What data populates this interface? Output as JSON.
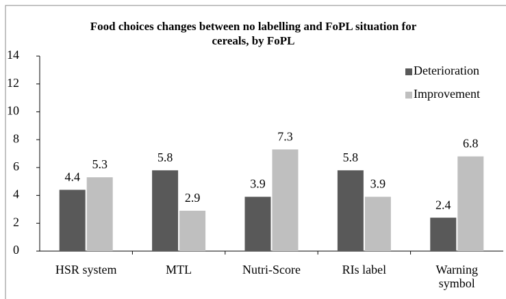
{
  "chart_data": {
    "type": "bar",
    "title": "Food choices changes between no labelling and FoPL situation for cereals, by FoPL",
    "categories": [
      "HSR system",
      "MTL",
      "Nutri-Score",
      "RIs label",
      "Warning symbol"
    ],
    "series": [
      {
        "name": "Deterioration",
        "color": "#595959",
        "values": [
          4.4,
          5.8,
          3.9,
          5.8,
          2.4
        ]
      },
      {
        "name": "Improvement",
        "color": "#bfbfbf",
        "values": [
          5.3,
          2.9,
          7.3,
          3.9,
          6.8
        ]
      }
    ],
    "ylim": [
      0,
      14
    ],
    "yticks": [
      0,
      2,
      4,
      6,
      8,
      10,
      12,
      14
    ],
    "grid": false,
    "legend": "top-right"
  }
}
